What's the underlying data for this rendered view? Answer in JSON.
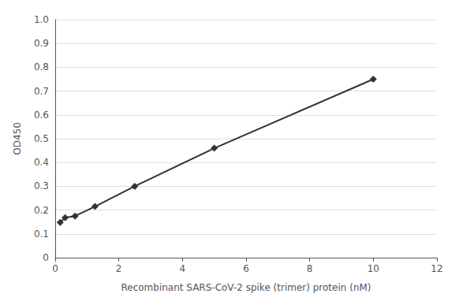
{
  "chart_data": {
    "type": "line",
    "x": [
      0.156,
      0.313,
      0.625,
      1.25,
      2.5,
      5.0,
      10.0
    ],
    "values": [
      0.148,
      0.168,
      0.175,
      0.215,
      0.3,
      0.46,
      0.75
    ],
    "color": "#333333",
    "marker": "diamond",
    "xlabel": "Recombinant SARS-CoV-2 spike (trimer) protein (nM)",
    "ylabel": "OD450",
    "xlim": [
      0,
      12
    ],
    "ylim": [
      0,
      1.0
    ],
    "xticks": [
      0,
      2,
      4,
      6,
      8,
      10,
      12
    ],
    "yticks": [
      0,
      0.1,
      0.2,
      0.3,
      0.4,
      0.5,
      0.6,
      0.7,
      0.8,
      0.9,
      {
        "value": 1,
        "label": "1.0"
      }
    ],
    "grid": true
  }
}
